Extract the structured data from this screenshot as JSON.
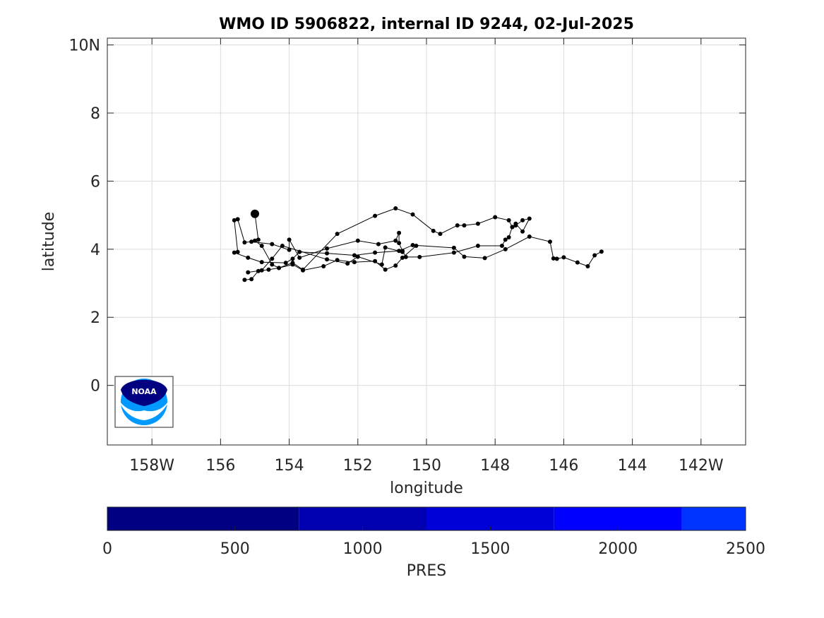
{
  "chart_data": {
    "type": "line",
    "title": "WMO ID 5906822, internal ID 9244, 02-Jul-2025",
    "xlabel": "longitude",
    "ylabel": "latitude",
    "xlim": [
      -159.3,
      -140.7
    ],
    "ylim": [
      -1.75,
      10.2
    ],
    "grid": true,
    "x_ticks": [
      {
        "value": -158,
        "label": "158W"
      },
      {
        "value": -156,
        "label": "156"
      },
      {
        "value": -154,
        "label": "154"
      },
      {
        "value": -152,
        "label": "152"
      },
      {
        "value": -150,
        "label": "150"
      },
      {
        "value": -148,
        "label": "148"
      },
      {
        "value": -146,
        "label": "146"
      },
      {
        "value": -144,
        "label": "144"
      },
      {
        "value": -142,
        "label": "142W"
      }
    ],
    "y_ticks": [
      {
        "value": 0,
        "label": "0"
      },
      {
        "value": 2,
        "label": "2"
      },
      {
        "value": 4,
        "label": "4"
      },
      {
        "value": 6,
        "label": "6"
      },
      {
        "value": 8,
        "label": "8"
      },
      {
        "value": 10,
        "label": "10N"
      }
    ],
    "series": [
      {
        "color": "#000000",
        "points": [
          [
            -155.0,
            5.04
          ],
          [
            -154.9,
            4.28
          ],
          [
            -155.0,
            4.25
          ],
          [
            -154.8,
            4.1
          ],
          [
            -154.5,
            3.55
          ],
          [
            -154.3,
            3.45
          ],
          [
            -153.9,
            3.6
          ],
          [
            -153.6,
            3.4
          ],
          [
            -152.6,
            4.45
          ],
          [
            -151.5,
            4.98
          ],
          [
            -150.9,
            5.2
          ],
          [
            -150.4,
            5.02
          ],
          [
            -149.8,
            4.54
          ],
          [
            -149.6,
            4.45
          ],
          [
            -149.1,
            4.7
          ],
          [
            -148.9,
            4.7
          ],
          [
            -148.5,
            4.75
          ],
          [
            -148.0,
            4.94
          ],
          [
            -147.6,
            4.85
          ],
          [
            -147.5,
            4.65
          ],
          [
            -147.4,
            4.7
          ],
          [
            -147.2,
            4.85
          ],
          [
            -147.0,
            4.9
          ],
          [
            -147.2,
            4.52
          ],
          [
            -147.4,
            4.75
          ],
          [
            -147.5,
            4.65
          ],
          [
            -147.6,
            4.35
          ],
          [
            -147.7,
            4.28
          ],
          [
            -147.8,
            4.1
          ],
          [
            -148.5,
            4.1
          ],
          [
            -149.2,
            3.9
          ],
          [
            -150.2,
            3.77
          ],
          [
            -150.6,
            3.77
          ],
          [
            -150.7,
            3.95
          ],
          [
            -150.8,
            4.18
          ],
          [
            -150.8,
            4.48
          ],
          [
            -150.9,
            4.25
          ],
          [
            -151.4,
            4.15
          ],
          [
            -152.0,
            4.25
          ],
          [
            -152.9,
            4.02
          ],
          [
            -153.7,
            3.75
          ],
          [
            -154.0,
            4.28
          ],
          [
            -154.0,
            3.98
          ],
          [
            -154.5,
            4.15
          ],
          [
            -155.1,
            4.22
          ],
          [
            -155.3,
            4.2
          ],
          [
            -155.5,
            4.88
          ],
          [
            -155.6,
            4.85
          ],
          [
            -155.5,
            3.92
          ],
          [
            -155.6,
            3.9
          ],
          [
            -155.2,
            3.75
          ],
          [
            -154.8,
            3.62
          ],
          [
            -154.1,
            3.6
          ],
          [
            -153.9,
            3.72
          ],
          [
            -153.7,
            3.92
          ],
          [
            -152.9,
            3.88
          ],
          [
            -152.1,
            3.82
          ],
          [
            -151.5,
            3.9
          ],
          [
            -150.8,
            3.95
          ],
          [
            -150.4,
            4.12
          ],
          [
            -149.2,
            4.04
          ],
          [
            -148.9,
            3.78
          ],
          [
            -148.3,
            3.74
          ],
          [
            -147.7,
            4.0
          ],
          [
            -147.0,
            4.37
          ],
          [
            -146.4,
            4.22
          ],
          [
            -146.3,
            3.73
          ],
          [
            -146.2,
            3.72
          ],
          [
            -146.0,
            3.76
          ],
          [
            -145.6,
            3.61
          ],
          [
            -145.3,
            3.5
          ],
          [
            -145.1,
            3.82
          ],
          [
            -144.9,
            3.93
          ]
        ]
      },
      {
        "color": "#000000",
        "points": [
          [
            -155.3,
            3.1
          ],
          [
            -155.1,
            3.12
          ],
          [
            -154.9,
            3.36
          ],
          [
            -154.6,
            3.4
          ],
          [
            -154.3,
            3.45
          ],
          [
            -153.9,
            3.55
          ],
          [
            -153.6,
            3.38
          ],
          [
            -153.0,
            3.5
          ],
          [
            -152.6,
            3.68
          ],
          [
            -152.1,
            3.62
          ],
          [
            -151.5,
            3.65
          ],
          [
            -151.2,
            3.4
          ],
          [
            -150.9,
            3.52
          ],
          [
            -150.7,
            3.75
          ],
          [
            -150.3,
            4.1
          ]
        ]
      },
      {
        "color": "#000000",
        "points": [
          [
            -155.2,
            3.32
          ],
          [
            -154.8,
            3.38
          ],
          [
            -154.5,
            3.72
          ],
          [
            -154.2,
            4.1
          ],
          [
            -152.9,
            3.7
          ],
          [
            -152.3,
            3.58
          ],
          [
            -152.0,
            3.78
          ],
          [
            -151.3,
            3.55
          ],
          [
            -151.2,
            4.05
          ],
          [
            -150.7,
            3.92
          ]
        ]
      }
    ],
    "start_marker": [
      -155.0,
      5.04
    ],
    "colorbar": {
      "label": "PRES",
      "range": [
        0,
        2500
      ],
      "ticks": [
        {
          "value": 0,
          "label": "0"
        },
        {
          "value": 500,
          "label": "500"
        },
        {
          "value": 1000,
          "label": "1000"
        },
        {
          "value": 1500,
          "label": "1500"
        },
        {
          "value": 2000,
          "label": "2000"
        },
        {
          "value": 2500,
          "label": "2500"
        }
      ],
      "segments": [
        {
          "from": 0,
          "to": 750,
          "color": "#000080"
        },
        {
          "from": 750,
          "to": 1250,
          "color": "#0000B0"
        },
        {
          "from": 1250,
          "to": 1750,
          "color": "#0000D8"
        },
        {
          "from": 1750,
          "to": 2250,
          "color": "#0000FF"
        },
        {
          "from": 2250,
          "to": 2500,
          "color": "#0033FF"
        }
      ]
    },
    "logo": {
      "text": "NOAA",
      "colors": {
        "navy": "#000080",
        "sky": "#0099FF"
      }
    }
  }
}
